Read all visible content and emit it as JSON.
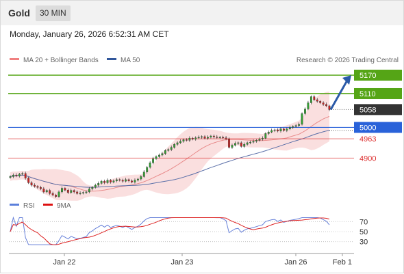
{
  "header": {
    "instrument": "Gold",
    "timeframe": "30 MIN"
  },
  "timestamp": "Monday, January 26, 2026 6:52:31 AM CET",
  "credit": "Research © 2026 Trading Central",
  "colors": {
    "up": "#33a333",
    "down": "#cc2222",
    "resistance": "#55a516",
    "pivot": "#2962d9",
    "support": "#dd3333",
    "current": "#333333",
    "bands": "#f7c9c9",
    "ma20": "#e88a8a",
    "ma50": "#5a6fa8",
    "rsi": "#6680d9",
    "rsi_ma": "#dd2222",
    "arrow": "#2a5aa8"
  },
  "legend": {
    "price": [
      {
        "label": "MA 20 + Bollinger Bands",
        "color": "#f08080"
      },
      {
        "label": "MA 50",
        "color": "#31579b"
      }
    ],
    "rsi": [
      {
        "label": "RSI",
        "color": "#5b7fdb"
      },
      {
        "label": "9MA",
        "color": "#dd1111"
      }
    ]
  },
  "chart_data": [
    {
      "type": "candlestick",
      "panel": "price",
      "ylim": [
        4812,
        5190
      ],
      "dates": [
        "Jan 22",
        "Jan 23",
        "Jan 26",
        "Feb 1"
      ],
      "levels": [
        {
          "value": 5170,
          "label": "5170",
          "kind": "resistance"
        },
        {
          "value": 5110,
          "label": "5110",
          "kind": "resistance"
        },
        {
          "value": 5058,
          "label": "5058",
          "kind": "current"
        },
        {
          "value": 5000,
          "label": "5000",
          "kind": "pivot"
        },
        {
          "value": 4963,
          "label": "4963",
          "kind": "support"
        },
        {
          "value": 4900,
          "label": "4900",
          "kind": "support"
        }
      ],
      "series_close": [
        4840,
        4845,
        4842,
        4848,
        4850,
        4835,
        4820,
        4812,
        4808,
        4805,
        4800,
        4790,
        4795,
        4785,
        4780,
        4775,
        4790,
        4802,
        4796,
        4788,
        4795,
        4790,
        4785,
        4786,
        4788,
        4790,
        4800,
        4805,
        4812,
        4818,
        4825,
        4820,
        4828,
        4822,
        4826,
        4830,
        4828,
        4825,
        4830,
        4826,
        4822,
        4828,
        4832,
        4840,
        4855,
        4870,
        4885,
        4898,
        4905,
        4910,
        4915,
        4925,
        4928,
        4935,
        4945,
        4950,
        4955,
        4960,
        4958,
        4965,
        4962,
        4966,
        4968,
        4970,
        4965,
        4968,
        4972,
        4969,
        4967,
        4968,
        4966,
        4963,
        4935,
        4942,
        4948,
        4950,
        4938,
        4945,
        4950,
        4952,
        4955,
        4958,
        4962,
        4965,
        4980,
        4985,
        4990,
        4992,
        4988,
        4995,
        4990,
        4995,
        5000,
        5003,
        5006,
        5010,
        5045,
        5060,
        5080,
        5100,
        5090,
        5085,
        5080,
        5075,
        5070,
        5058
      ],
      "forecast_target": 5170
    },
    {
      "type": "line",
      "panel": "rsi",
      "yticks": [
        70,
        50,
        30
      ],
      "series": [
        {
          "name": "RSI"
        },
        {
          "name": "9MA"
        }
      ]
    }
  ]
}
